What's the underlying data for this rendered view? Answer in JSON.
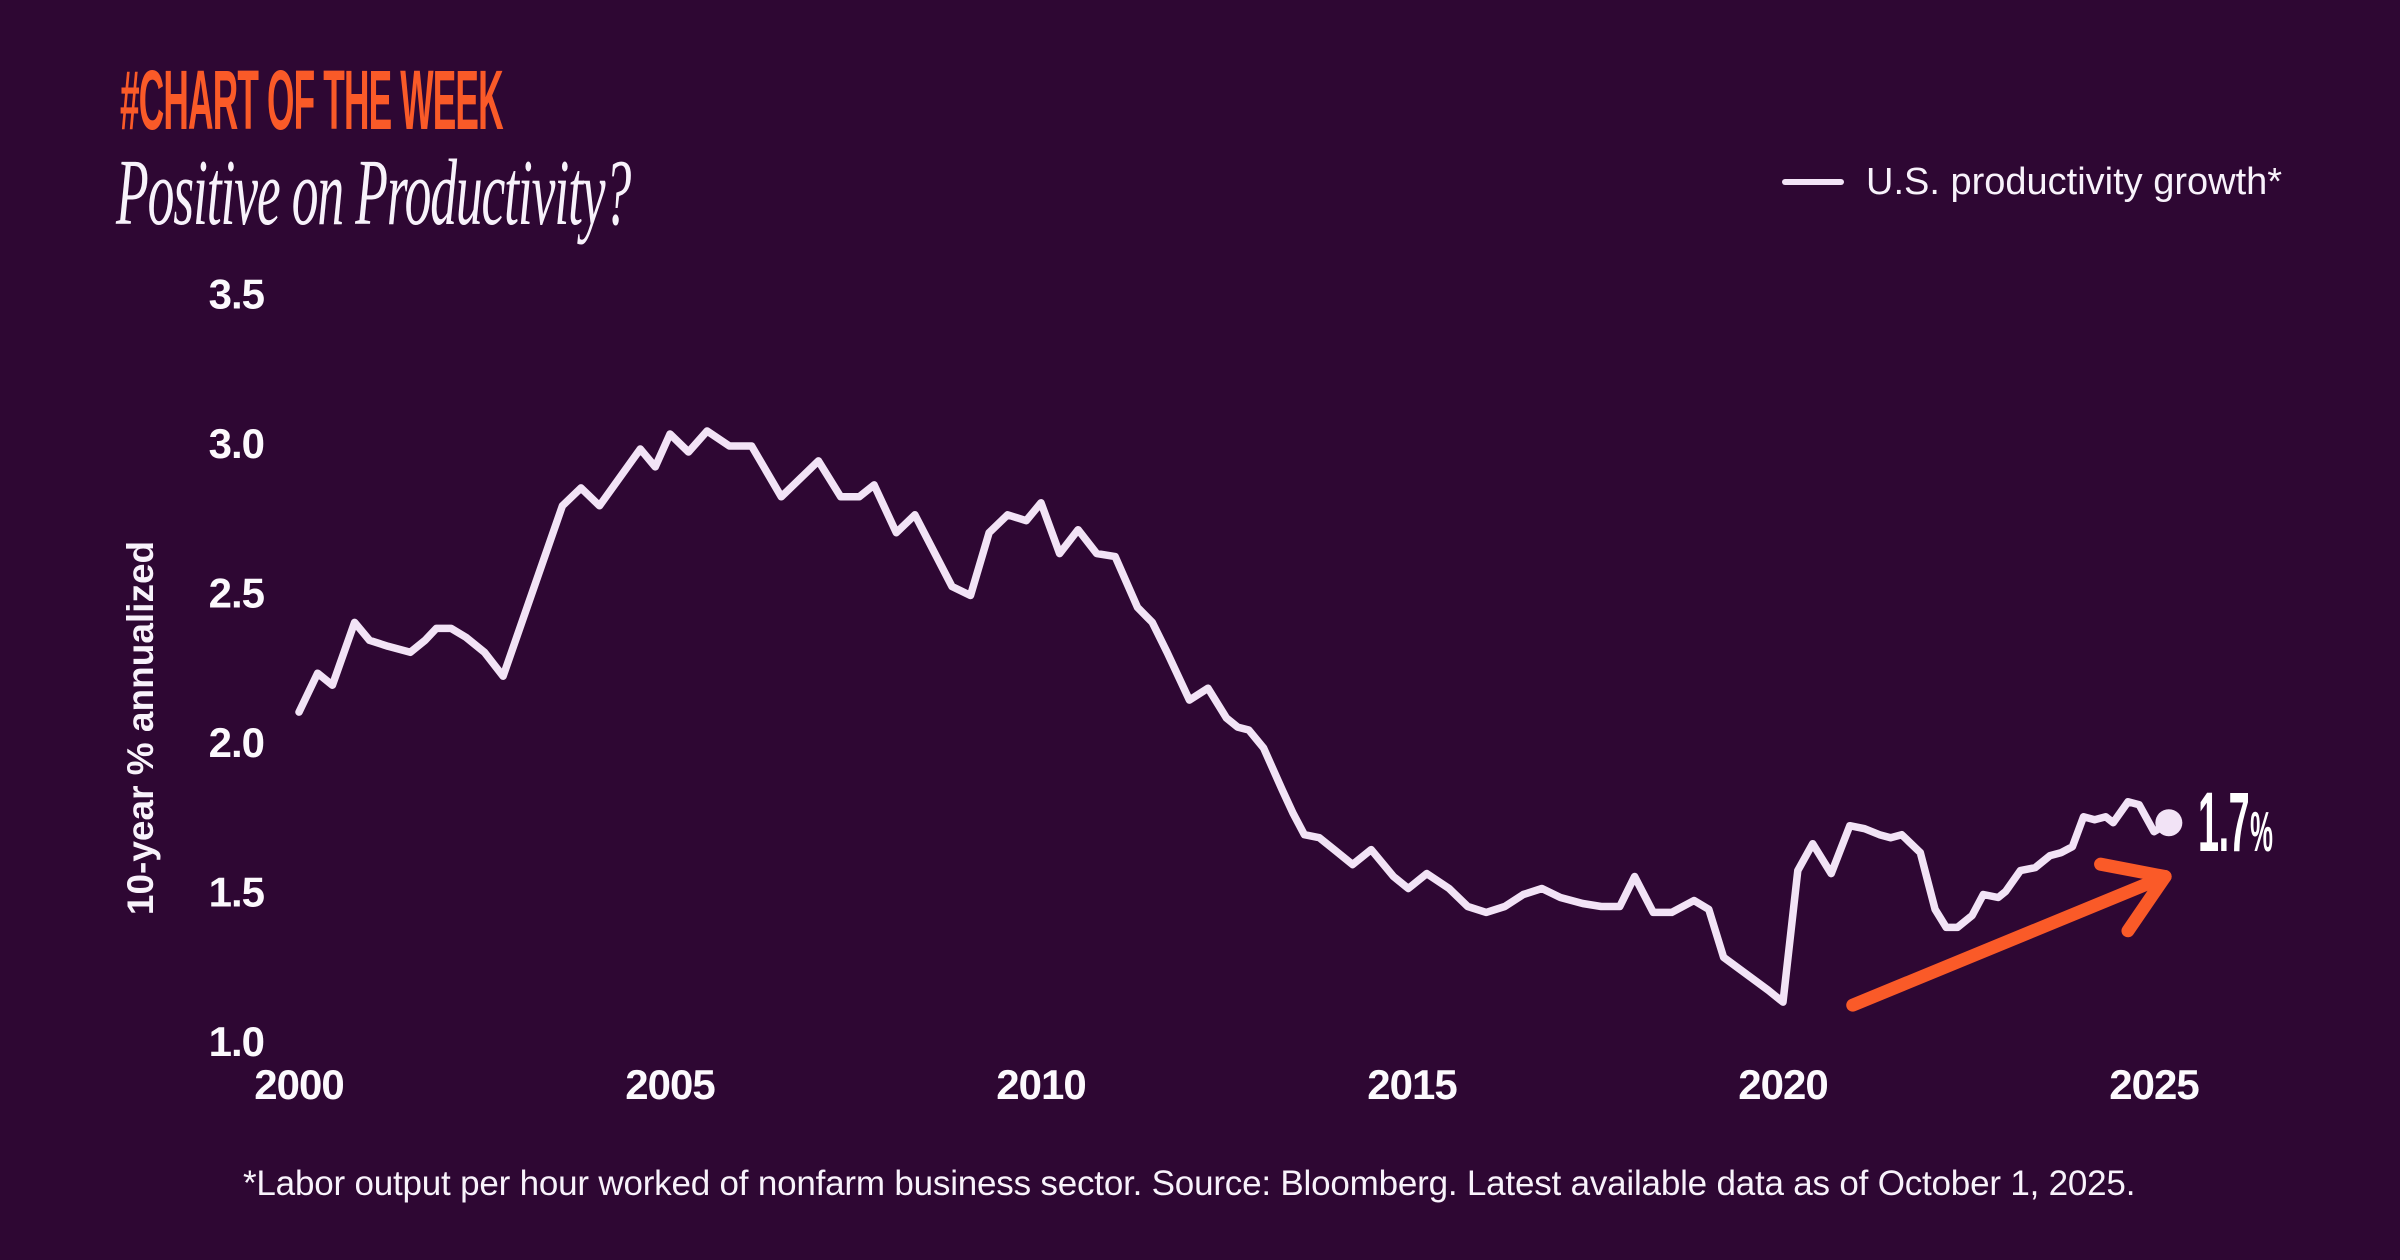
{
  "header": {
    "kicker": "#CHART OF THE WEEK",
    "title": "Positive on Productivity?"
  },
  "legend": {
    "label": "U.S. productivity growth*"
  },
  "annotation": {
    "value": "1.7",
    "suffix": "%"
  },
  "footer": {
    "note": "*Labor output per hour worked of nonfarm business sector. Source: Bloomberg. Latest available data as of October 1, 2025."
  },
  "colors": {
    "background": "#2e0733",
    "line": "#f2e3f6",
    "accent_orange": "#fa5a28",
    "kicker_orange": "#fa5a28",
    "text": "#f8f2fb",
    "tick_text": "#fcf9fd"
  },
  "chart_data": {
    "type": "line",
    "title": "Positive on Productivity?",
    "xlabel": "",
    "ylabel": "10-year % annualized",
    "x_ticks": [
      2000,
      2005,
      2010,
      2015,
      2020,
      2025
    ],
    "y_ticks": [
      3.5,
      3.0,
      2.5,
      2.0,
      1.5,
      1.0
    ],
    "xlim": [
      2000,
      2025.6
    ],
    "ylim": [
      1.0,
      3.5
    ],
    "grid": false,
    "legend_position": "top-right",
    "end_point": {
      "x": 2025.2,
      "y": 1.73,
      "label": "1.7%"
    },
    "trend_arrow": {
      "from": [
        2020.94,
        1.12
      ],
      "to": [
        2025.15,
        1.55
      ]
    },
    "series": [
      {
        "name": "U.S. productivity growth*",
        "points": [
          [
            2000.0,
            2.1
          ],
          [
            2000.25,
            2.23
          ],
          [
            2000.45,
            2.19
          ],
          [
            2000.75,
            2.4
          ],
          [
            2000.95,
            2.34
          ],
          [
            2001.2,
            2.32
          ],
          [
            2001.5,
            2.3
          ],
          [
            2001.7,
            2.34
          ],
          [
            2001.85,
            2.38
          ],
          [
            2002.05,
            2.38
          ],
          [
            2002.25,
            2.35
          ],
          [
            2002.5,
            2.3
          ],
          [
            2002.75,
            2.22
          ],
          [
            2003.55,
            2.79
          ],
          [
            2003.8,
            2.85
          ],
          [
            2004.05,
            2.79
          ],
          [
            2004.6,
            2.98
          ],
          [
            2004.8,
            2.92
          ],
          [
            2005.0,
            3.03
          ],
          [
            2005.25,
            2.97
          ],
          [
            2005.5,
            3.04
          ],
          [
            2005.8,
            2.99
          ],
          [
            2006.1,
            2.99
          ],
          [
            2006.5,
            2.82
          ],
          [
            2007.0,
            2.94
          ],
          [
            2007.3,
            2.82
          ],
          [
            2007.55,
            2.82
          ],
          [
            2007.75,
            2.86
          ],
          [
            2008.05,
            2.7
          ],
          [
            2008.3,
            2.76
          ],
          [
            2008.8,
            2.52
          ],
          [
            2009.05,
            2.49
          ],
          [
            2009.3,
            2.7
          ],
          [
            2009.55,
            2.76
          ],
          [
            2009.8,
            2.74
          ],
          [
            2010.0,
            2.8
          ],
          [
            2010.25,
            2.63
          ],
          [
            2010.5,
            2.71
          ],
          [
            2010.75,
            2.63
          ],
          [
            2011.0,
            2.62
          ],
          [
            2011.3,
            2.45
          ],
          [
            2011.5,
            2.4
          ],
          [
            2011.7,
            2.3
          ],
          [
            2012.0,
            2.14
          ],
          [
            2012.25,
            2.18
          ],
          [
            2012.5,
            2.08
          ],
          [
            2012.65,
            2.05
          ],
          [
            2012.8,
            2.04
          ],
          [
            2013.0,
            1.98
          ],
          [
            2013.25,
            1.84
          ],
          [
            2013.4,
            1.76
          ],
          [
            2013.55,
            1.69
          ],
          [
            2013.75,
            1.68
          ],
          [
            2013.95,
            1.64
          ],
          [
            2014.2,
            1.59
          ],
          [
            2014.45,
            1.64
          ],
          [
            2014.75,
            1.55
          ],
          [
            2014.95,
            1.51
          ],
          [
            2015.2,
            1.56
          ],
          [
            2015.5,
            1.51
          ],
          [
            2015.75,
            1.45
          ],
          [
            2016.0,
            1.43
          ],
          [
            2016.25,
            1.45
          ],
          [
            2016.5,
            1.49
          ],
          [
            2016.75,
            1.51
          ],
          [
            2017.0,
            1.48
          ],
          [
            2017.3,
            1.46
          ],
          [
            2017.55,
            1.45
          ],
          [
            2017.8,
            1.45
          ],
          [
            2018.0,
            1.55
          ],
          [
            2018.25,
            1.43
          ],
          [
            2018.5,
            1.43
          ],
          [
            2018.8,
            1.47
          ],
          [
            2019.0,
            1.44
          ],
          [
            2019.2,
            1.28
          ],
          [
            2019.8,
            1.17
          ],
          [
            2020.0,
            1.13
          ],
          [
            2020.2,
            1.57
          ],
          [
            2020.4,
            1.66
          ],
          [
            2020.65,
            1.56
          ],
          [
            2020.9,
            1.72
          ],
          [
            2021.1,
            1.71
          ],
          [
            2021.3,
            1.69
          ],
          [
            2021.45,
            1.68
          ],
          [
            2021.6,
            1.69
          ],
          [
            2021.85,
            1.63
          ],
          [
            2022.05,
            1.44
          ],
          [
            2022.2,
            1.38
          ],
          [
            2022.35,
            1.38
          ],
          [
            2022.55,
            1.42
          ],
          [
            2022.7,
            1.49
          ],
          [
            2022.9,
            1.48
          ],
          [
            2023.0,
            1.5
          ],
          [
            2023.2,
            1.57
          ],
          [
            2023.4,
            1.58
          ],
          [
            2023.6,
            1.62
          ],
          [
            2023.75,
            1.63
          ],
          [
            2023.9,
            1.65
          ],
          [
            2024.05,
            1.75
          ],
          [
            2024.2,
            1.74
          ],
          [
            2024.35,
            1.75
          ],
          [
            2024.45,
            1.73
          ],
          [
            2024.65,
            1.8
          ],
          [
            2024.8,
            1.79
          ],
          [
            2025.0,
            1.7
          ],
          [
            2025.2,
            1.73
          ]
        ]
      }
    ]
  }
}
